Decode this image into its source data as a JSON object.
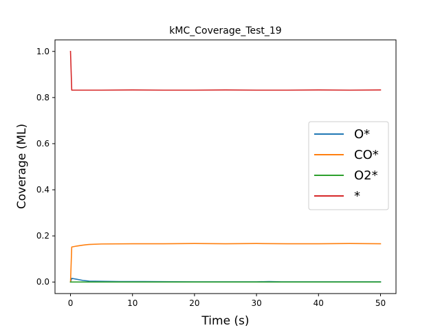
{
  "chart_data": {
    "type": "line",
    "title": "kMC_Coverage_Test_19",
    "xlabel": "Time (s)",
    "ylabel": "Coverage (ML)",
    "xlim": [
      -2.5,
      52.5
    ],
    "ylim": [
      -0.05,
      1.05
    ],
    "x_ticks": [
      0,
      10,
      20,
      30,
      40,
      50
    ],
    "y_ticks": [
      0.0,
      0.2,
      0.4,
      0.6,
      0.8,
      1.0
    ],
    "x_tick_labels": [
      "0",
      "10",
      "20",
      "30",
      "40",
      "50"
    ],
    "y_tick_labels": [
      "0.0",
      "0.2",
      "0.4",
      "0.6",
      "0.8",
      "1.0"
    ],
    "grid": false,
    "legend_position": "center-right",
    "series": [
      {
        "name": "O*",
        "color": "#1f77b4",
        "x": [
          0,
          0.2,
          1,
          2,
          3,
          5,
          8,
          12,
          20,
          30,
          32,
          34,
          40,
          50
        ],
        "values": [
          0,
          0.016,
          0.012,
          0.007,
          0.004,
          0.003,
          0.002,
          0.002,
          0.001,
          0.001,
          0.002,
          0.001,
          0.001,
          0.001
        ]
      },
      {
        "name": "CO*",
        "color": "#ff7f0e",
        "x": [
          0,
          0.2,
          1,
          2,
          3,
          5,
          10,
          15,
          20,
          25,
          30,
          35,
          40,
          45,
          50
        ],
        "values": [
          0,
          0.152,
          0.156,
          0.16,
          0.163,
          0.165,
          0.166,
          0.166,
          0.167,
          0.166,
          0.167,
          0.166,
          0.166,
          0.167,
          0.166
        ]
      },
      {
        "name": "O2*",
        "color": "#2ca02c",
        "x": [
          0,
          10,
          20,
          30,
          40,
          50
        ],
        "values": [
          0,
          0,
          0,
          0,
          0,
          0
        ]
      },
      {
        "name": "*",
        "color": "#d62728",
        "x": [
          0,
          0.2,
          1,
          5,
          10,
          15,
          20,
          25,
          30,
          35,
          40,
          45,
          50
        ],
        "values": [
          1.0,
          0.832,
          0.832,
          0.832,
          0.833,
          0.832,
          0.832,
          0.833,
          0.832,
          0.832,
          0.833,
          0.832,
          0.833
        ]
      }
    ]
  }
}
